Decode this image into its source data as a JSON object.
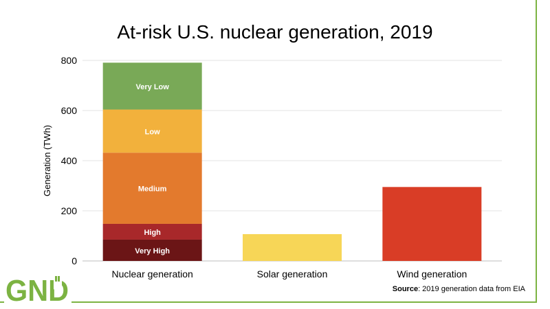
{
  "chart_data": {
    "type": "bar",
    "stacked": true,
    "title": "At-risk U.S. nuclear generation, 2019",
    "ylabel": "Generation (TWh)",
    "xlabel": "",
    "ylim": [
      0,
      800
    ],
    "yticks": [
      0,
      200,
      400,
      600,
      800
    ],
    "grid": true,
    "categories": [
      "Nuclear generation",
      "Solar generation",
      "Wind generation"
    ],
    "series": [
      {
        "name": "Very High",
        "values": [
          85,
          0,
          0
        ],
        "color": "#6b1516"
      },
      {
        "name": "High",
        "values": [
          63,
          0,
          0
        ],
        "color": "#a8282a"
      },
      {
        "name": "Medium",
        "values": [
          284,
          0,
          0
        ],
        "color": "#e37a2d"
      },
      {
        "name": "Low",
        "values": [
          172,
          0,
          0
        ],
        "color": "#f2b13c"
      },
      {
        "name": "Very Low",
        "values": [
          187,
          0,
          0
        ],
        "color": "#79a957"
      },
      {
        "name": "",
        "values": [
          0,
          107,
          0
        ],
        "color": "#f7d657"
      },
      {
        "name": "",
        "values": [
          0,
          0,
          295
        ],
        "color": "#d93d26"
      }
    ]
  },
  "footer": {
    "source_label": "Source",
    "source_text": ": 2019 generation data from EIA"
  },
  "logo": {
    "text": "GND",
    "color": "#7cb342",
    "icon": "raised-fist-icon"
  }
}
